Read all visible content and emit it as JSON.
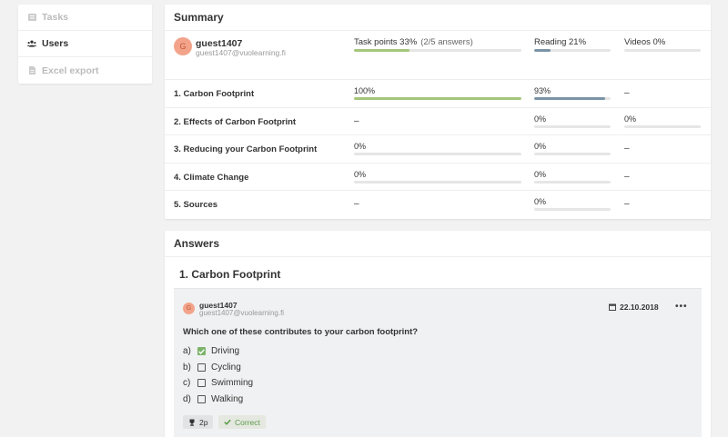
{
  "sidebar": {
    "items": [
      {
        "label": "Tasks",
        "icon": "list-icon",
        "active": false
      },
      {
        "label": "Users",
        "icon": "users-icon",
        "active": true
      },
      {
        "label": "Excel export",
        "icon": "file-icon",
        "active": false
      }
    ]
  },
  "summary": {
    "title": "Summary",
    "user": {
      "initial": "G",
      "name": "guest1407",
      "email": "guest1407@vuolearning.fi"
    },
    "task_points": {
      "label": "Task points 33%",
      "sub": "(2/5 answers)",
      "fraction": 0.33
    },
    "reading": {
      "label": "Reading 21%",
      "fraction": 0.21
    },
    "videos": {
      "label": "Videos 0%",
      "fraction": 0.0
    },
    "chapters": [
      {
        "name": "1. Carbon Footprint",
        "task": "100%",
        "task_fraction": 1.0,
        "reading": "93%",
        "reading_fraction": 0.93,
        "videos": "–"
      },
      {
        "name": "2. Effects of Carbon Footprint",
        "task": "–",
        "reading": "0%",
        "reading_fraction": 0.0,
        "videos": "0%",
        "videos_fraction": 0.0
      },
      {
        "name": "3. Reducing your Carbon Footprint",
        "task": "0%",
        "task_fraction": 0.0,
        "reading": "0%",
        "reading_fraction": 0.0,
        "videos": "–"
      },
      {
        "name": "4. Climate Change",
        "task": "0%",
        "task_fraction": 0.0,
        "reading": "0%",
        "reading_fraction": 0.0,
        "videos": "–"
      },
      {
        "name": "5. Sources",
        "task": "–",
        "reading": "0%",
        "reading_fraction": 0.0,
        "videos": "–"
      }
    ]
  },
  "answers": {
    "title": "Answers",
    "section": "1. Carbon Footprint",
    "answer": {
      "initial": "G",
      "name": "guest1407",
      "email": "guest1407@vuolearning.fi",
      "date": "22.10.2018",
      "more": "•••",
      "question": "Which one of these contributes to your carbon footprint?",
      "options": [
        {
          "letter": "a)",
          "text": "Driving",
          "checked": true
        },
        {
          "letter": "b)",
          "text": "Cycling",
          "checked": false
        },
        {
          "letter": "c)",
          "text": "Swimming",
          "checked": false
        },
        {
          "letter": "d)",
          "text": "Walking",
          "checked": false
        }
      ],
      "points": "2p",
      "status": "Correct"
    }
  },
  "colors": {
    "accent_green": "#a4c67a",
    "reading_blue": "#7a93a6",
    "avatar_bg": "#f3a38a",
    "check_green": "#7cb36b"
  }
}
